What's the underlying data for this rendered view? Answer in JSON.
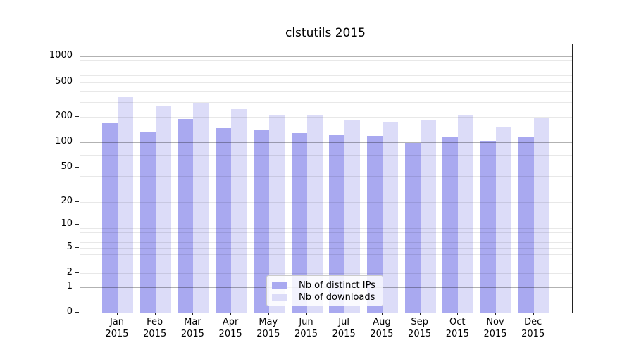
{
  "title": "clstutils 2015",
  "legend": {
    "items": [
      {
        "label": "Nb of distinct IPs",
        "color": "#a9a9f0"
      },
      {
        "label": "Nb of downloads",
        "color": "#dcdcf8"
      }
    ]
  },
  "chart_data": {
    "type": "bar",
    "title": "clstutils 2015",
    "categories": [
      "Jan 2015",
      "Feb 2015",
      "Mar 2015",
      "Apr 2015",
      "May 2015",
      "Jun 2015",
      "Jul 2015",
      "Aug 2015",
      "Sep 2015",
      "Oct 2015",
      "Nov 2015",
      "Dec 2015"
    ],
    "series": [
      {
        "name": "Nb of distinct IPs",
        "color": "#a9a9f0",
        "values": [
          170,
          136,
          192,
          149,
          140,
          130,
          123,
          120,
          98,
          118,
          105,
          118
        ]
      },
      {
        "name": "Nb of downloads",
        "color": "#dcdcf8",
        "values": [
          340,
          270,
          290,
          248,
          212,
          215,
          187,
          178,
          188,
          216,
          151,
          194
        ]
      }
    ],
    "xlabel": "",
    "ylabel": "",
    "yscale": "symlog",
    "yticks": [
      0,
      1,
      2,
      5,
      10,
      20,
      50,
      100,
      200,
      500,
      1000
    ],
    "ylim": [
      0,
      1400
    ],
    "grid": true,
    "legend_position": "lower center"
  }
}
